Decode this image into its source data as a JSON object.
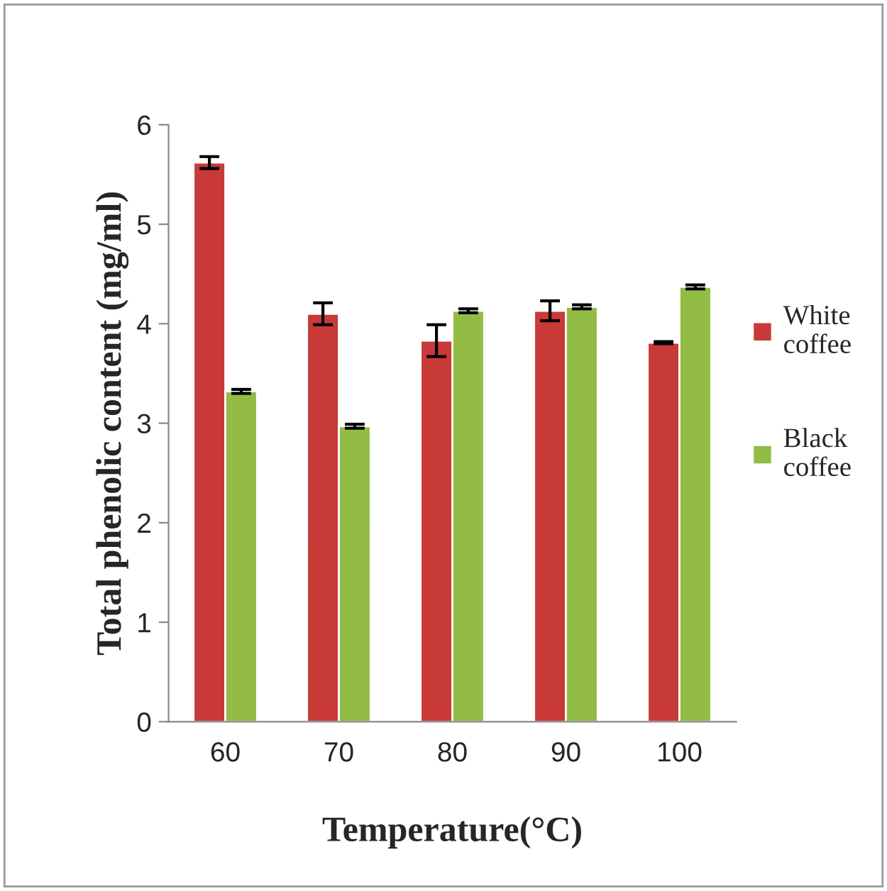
{
  "chart_data": {
    "type": "bar",
    "xlabel": "Temperature(°C)",
    "ylabel": "Total phenolic content (mg/ml)",
    "categories": [
      "60",
      "70",
      "80",
      "90",
      "100"
    ],
    "series": [
      {
        "name": "White coffee",
        "color": "#c83a38",
        "values": [
          5.62,
          4.1,
          3.83,
          4.13,
          3.81
        ],
        "errors": [
          0.06,
          0.11,
          0.16,
          0.1,
          0.01
        ]
      },
      {
        "name": "Black coffee",
        "color": "#92bc44",
        "values": [
          3.32,
          2.97,
          4.13,
          4.17,
          4.37
        ],
        "errors": [
          0.02,
          0.02,
          0.02,
          0.02,
          0.02
        ]
      }
    ],
    "ylim": [
      0,
      6
    ],
    "yticks": [
      0,
      1,
      2,
      3,
      4,
      5,
      6
    ],
    "grid": false,
    "legend": "right"
  }
}
